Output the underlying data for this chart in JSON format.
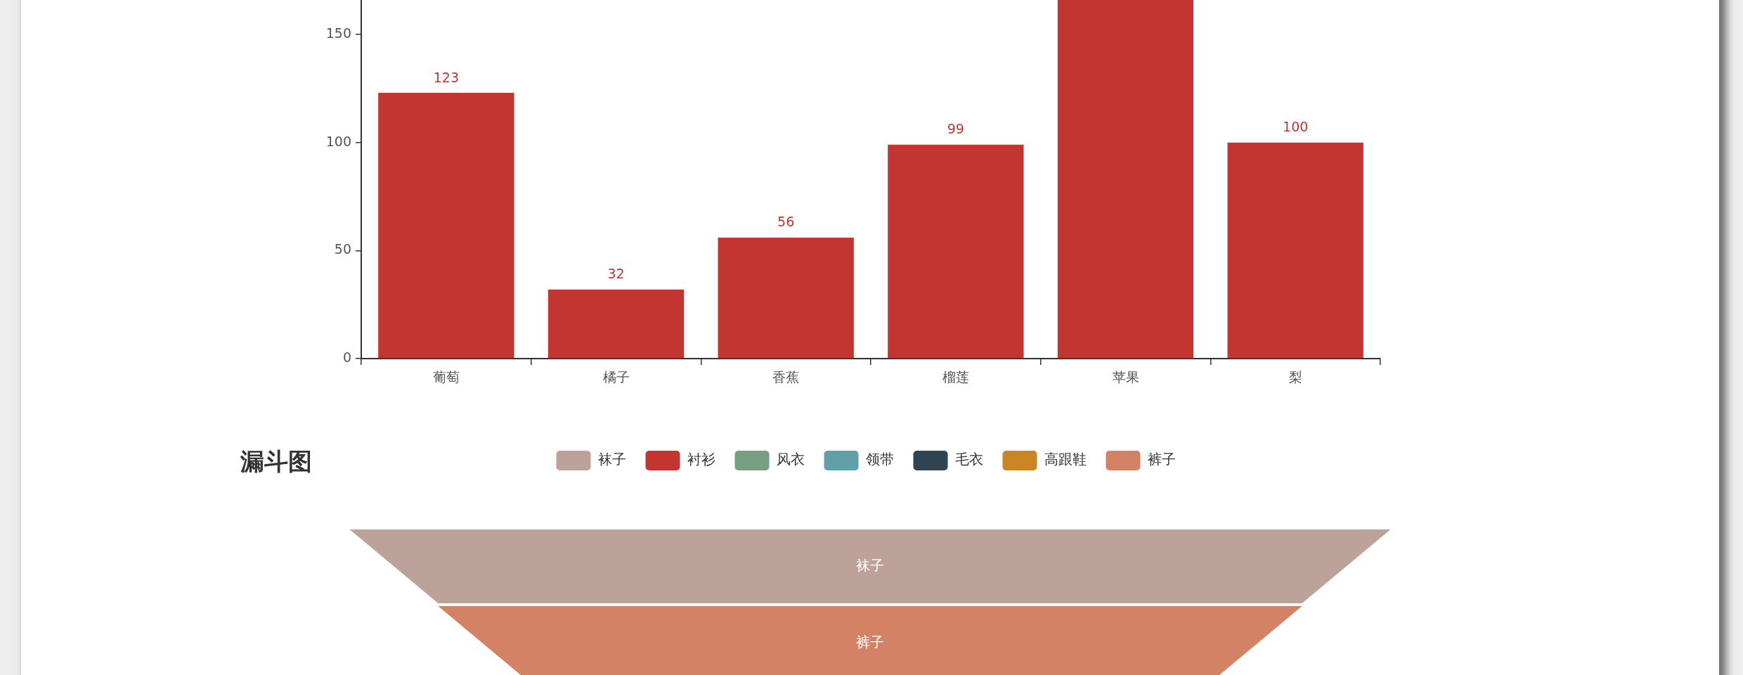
{
  "chart_data": [
    {
      "type": "bar",
      "categories": [
        "葡萄",
        "橘子",
        "香蕉",
        "榴莲",
        "苹果",
        "梨"
      ],
      "values": [
        123,
        32,
        56,
        99,
        166,
        100
      ],
      "color": "#c23531",
      "value_labels": [
        "123",
        "32",
        "56",
        "99",
        null,
        "100"
      ],
      "ylim": [
        0,
        166
      ],
      "yticks": [
        0,
        50,
        100,
        150
      ]
    },
    {
      "type": "other",
      "title": "漏斗图",
      "categories": [
        "袜子",
        "裤子"
      ],
      "colors": [
        "#bda29a",
        "#d48265"
      ],
      "legend": "top",
      "series": [
        {
          "name": "袜子",
          "color": "#bda29a",
          "values": [
            null,
            null
          ]
        },
        {
          "name": "衬衫",
          "color": "#c23531",
          "values": [
            null,
            null
          ]
        },
        {
          "name": "风衣",
          "color": "#749f83",
          "values": [
            null,
            null
          ]
        },
        {
          "name": "领带",
          "color": "#61a0a8",
          "values": [
            null,
            null
          ]
        },
        {
          "name": "毛衣",
          "color": "#2f4554",
          "values": [
            null,
            null
          ]
        },
        {
          "name": "高跟鞋",
          "color": "#ca8622",
          "values": [
            null,
            null
          ]
        },
        {
          "name": "裤子",
          "color": "#d48265",
          "values": [
            null,
            null
          ]
        }
      ]
    }
  ]
}
